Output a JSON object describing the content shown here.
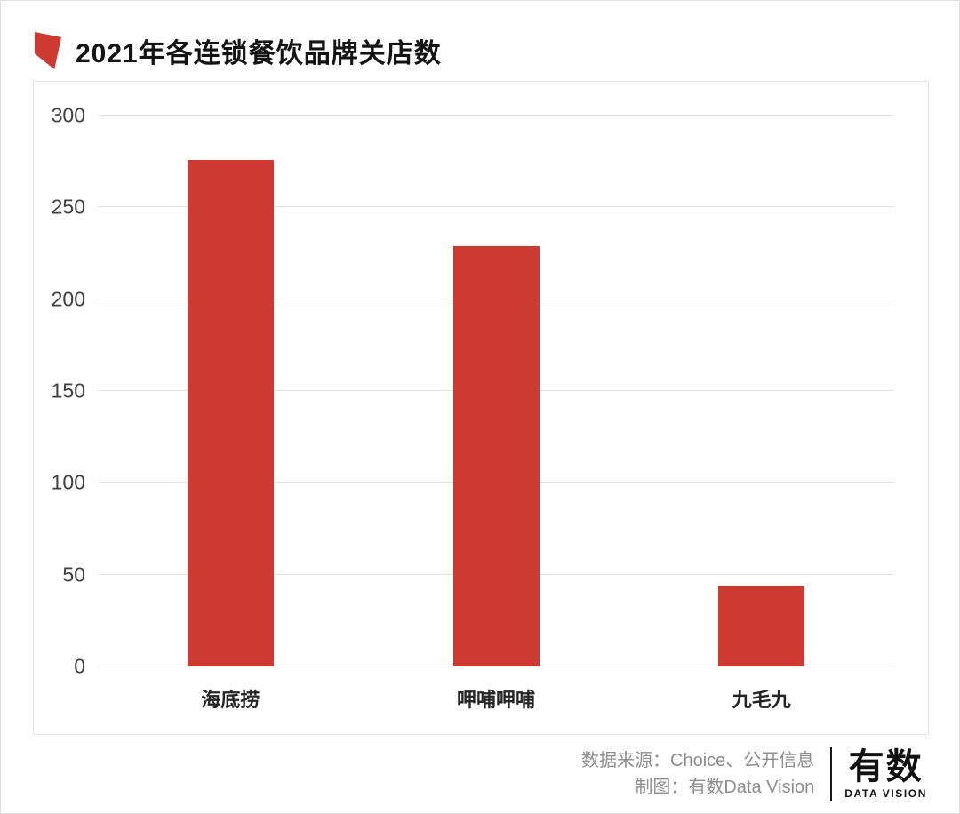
{
  "header": {
    "title": "2021年各连锁餐饮品牌关店数"
  },
  "chart_data": {
    "type": "bar",
    "title": "2021年各连锁餐饮品牌关店数",
    "categories": [
      "海底捞",
      "呷哺呷哺",
      "九毛九"
    ],
    "values": [
      276,
      229,
      44
    ],
    "xlabel": "",
    "ylabel": "",
    "ylim": [
      0,
      300
    ],
    "yticks": [
      0,
      50,
      100,
      150,
      200,
      250,
      300
    ],
    "grid": true,
    "legend": false,
    "bar_color": "#cc3a32"
  },
  "colors": {
    "accent": "#cc3a32",
    "gridline": "#e1e1e1",
    "muted_text": "#8e8e8e"
  },
  "footer": {
    "source_line": "数据来源：Choice、公开信息",
    "credit_line": "制图：有数Data Vision",
    "logo_text": "有数",
    "logo_subtext": "DATA VISION"
  }
}
